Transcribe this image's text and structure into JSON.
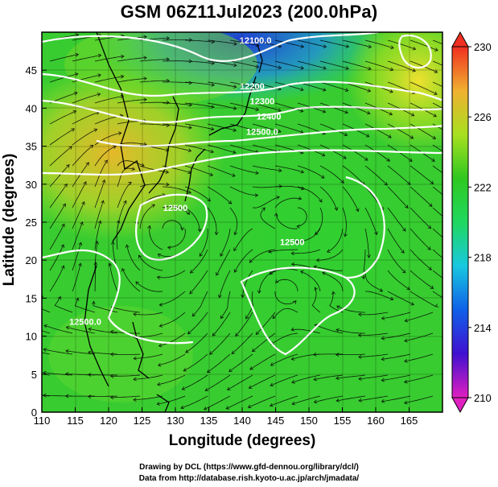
{
  "title": "GSM 06Z11Jul2023 (200.0hPa)",
  "x_axis": {
    "label": "Longitude (degrees)",
    "range": [
      110,
      170
    ],
    "ticks": [
      110,
      115,
      120,
      125,
      130,
      135,
      140,
      145,
      150,
      155,
      160,
      165
    ]
  },
  "y_axis": {
    "label": "Latitude  (degrees)",
    "range": [
      0,
      50
    ],
    "ticks": [
      0,
      5,
      10,
      15,
      20,
      25,
      30,
      35,
      40,
      45
    ]
  },
  "colorbar": {
    "range": [
      210,
      230
    ],
    "labels": [
      230,
      226,
      222,
      218,
      214,
      210
    ],
    "colors": [
      "#e020c0",
      "#4010d0",
      "#1060e8",
      "#18c8e0",
      "#20d860",
      "#30c820",
      "#a8e020",
      "#f0b030",
      "#f03020"
    ]
  },
  "contours": [
    {
      "label": "12100.0",
      "lon": 142,
      "lat": 48.5
    },
    {
      "label": "12200",
      "lon": 141.5,
      "lat": 42.5
    },
    {
      "label": "12300",
      "lon": 143,
      "lat": 40.5
    },
    {
      "label": "12400",
      "lon": 144,
      "lat": 38.5
    },
    {
      "label": "12500.0",
      "lon": 143,
      "lat": 36.5
    },
    {
      "label": "12500.0",
      "lon": 116.5,
      "lat": 11.5
    },
    {
      "label": "12500",
      "lon": 147.5,
      "lat": 22
    },
    {
      "label": "12500",
      "lon": 130,
      "lat": 26.5
    }
  ],
  "credits": [
    "Drawing by DCL (https://www.gfd-dennou.org/library/dcl/)",
    "Data from http://database.rish.kyoto-u.ac.jp/arch/jmadata/"
  ]
}
